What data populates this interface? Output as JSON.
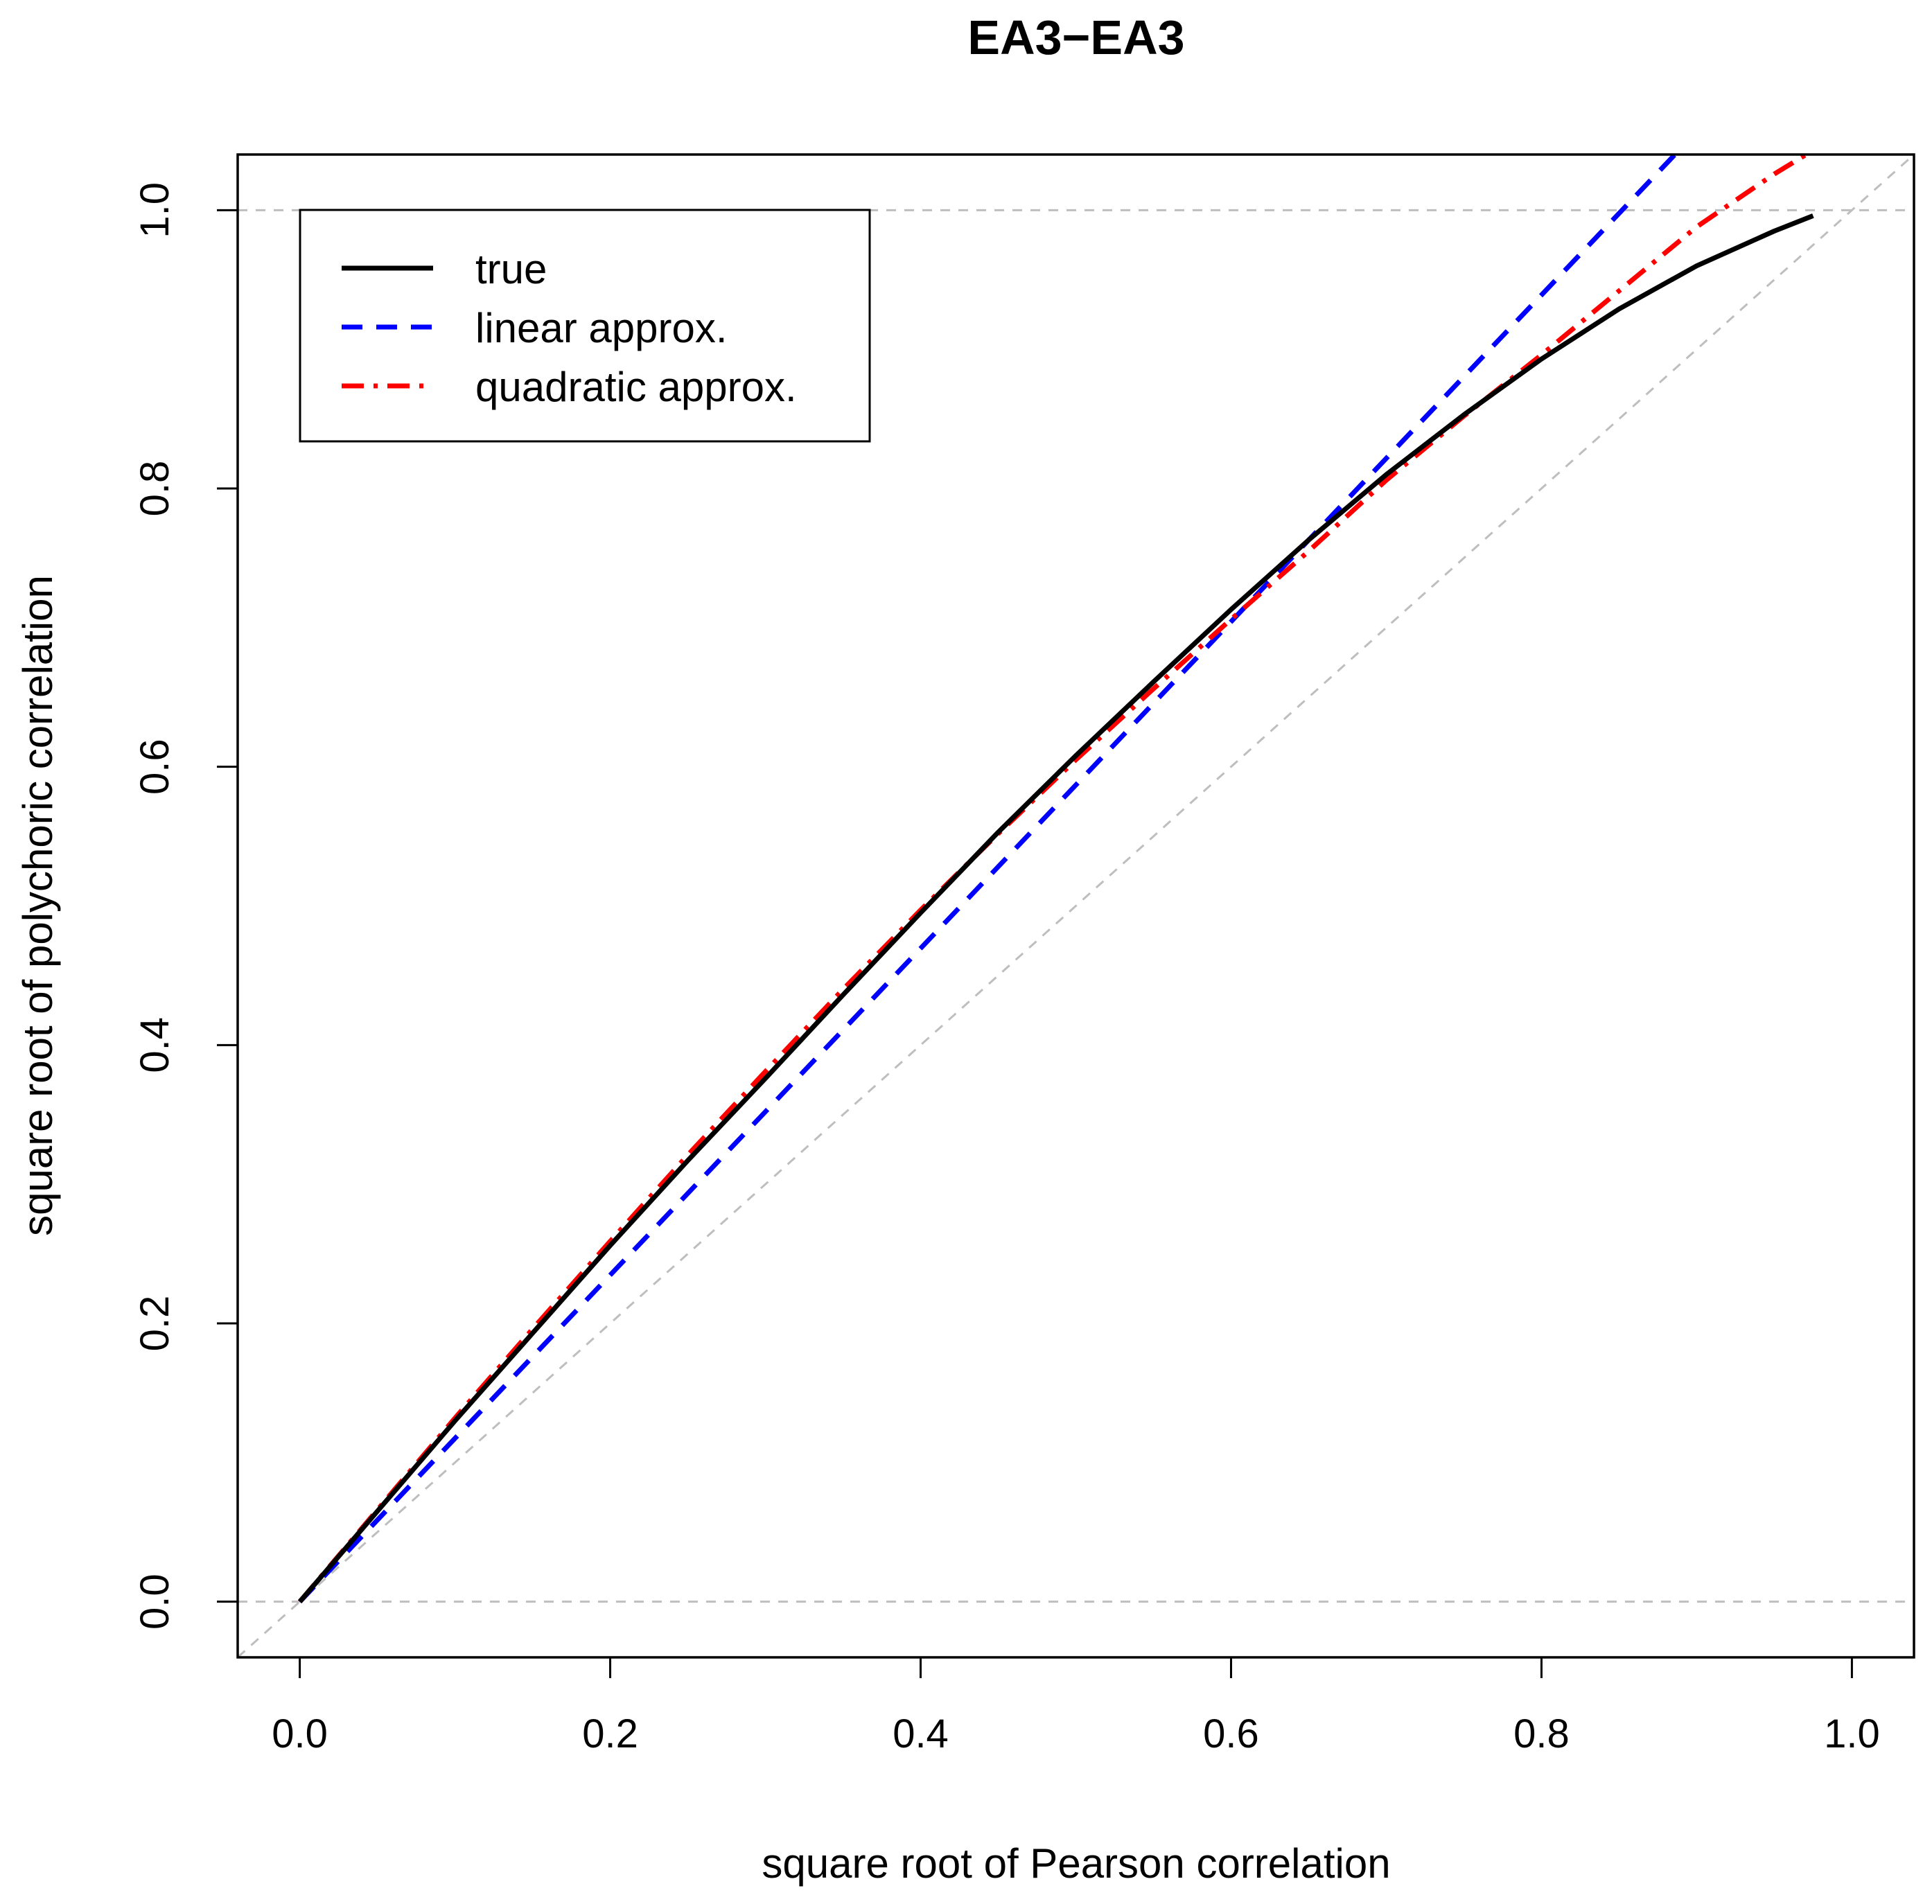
{
  "chart_data": {
    "type": "line",
    "title": "EA3−EA3",
    "xlabel": "square root of Pearson correlation",
    "ylabel": "square root of polychoric correlation",
    "xlim": [
      -0.04,
      1.04
    ],
    "ylim": [
      -0.04,
      1.04
    ],
    "xticks": [
      "0.0",
      "0.2",
      "0.4",
      "0.6",
      "0.8",
      "1.0"
    ],
    "yticks": [
      "0.0",
      "0.2",
      "0.4",
      "0.6",
      "0.8",
      "1.0"
    ],
    "grid": false,
    "legend_position": "top-left",
    "reference_lines": [
      {
        "name": "y = 0",
        "type": "horizontal",
        "value": 0,
        "color": "#bebebe",
        "style": "dashed"
      },
      {
        "name": "y = 1",
        "type": "horizontal",
        "value": 1,
        "color": "#bebebe",
        "style": "dashed"
      },
      {
        "name": "y = x",
        "type": "diagonal",
        "color": "#bebebe",
        "style": "dashed"
      }
    ],
    "series": [
      {
        "name": "true",
        "color": "#000000",
        "style": "solid",
        "x": [
          0,
          0.05,
          0.1,
          0.15,
          0.2,
          0.25,
          0.3,
          0.35,
          0.4,
          0.45,
          0.5,
          0.55,
          0.6,
          0.65,
          0.7,
          0.75,
          0.8,
          0.85,
          0.9,
          0.95,
          0.975
        ],
        "y": [
          0,
          0.065,
          0.13,
          0.193,
          0.256,
          0.317,
          0.376,
          0.436,
          0.495,
          0.553,
          0.608,
          0.661,
          0.713,
          0.763,
          0.81,
          0.853,
          0.893,
          0.929,
          0.96,
          0.985,
          0.996
        ]
      },
      {
        "name": "linear approx.",
        "color": "#0000ff",
        "style": "dashed",
        "x": [
          0,
          0.886
        ],
        "y": [
          0,
          1.04
        ]
      },
      {
        "name": "quadratic approx.",
        "color": "#ff0000",
        "style": "dotdash",
        "x": [
          0,
          0.05,
          0.1,
          0.15,
          0.2,
          0.25,
          0.3,
          0.35,
          0.4,
          0.45,
          0.5,
          0.55,
          0.6,
          0.65,
          0.7,
          0.75,
          0.8,
          0.85,
          0.9,
          0.95,
          0.975
        ],
        "y": [
          0,
          0.066,
          0.132,
          0.196,
          0.259,
          0.321,
          0.381,
          0.44,
          0.497,
          0.552,
          0.605,
          0.656,
          0.706,
          0.755,
          0.806,
          0.852,
          0.896,
          0.942,
          0.988,
          1.026,
          1.043
        ]
      }
    ]
  }
}
